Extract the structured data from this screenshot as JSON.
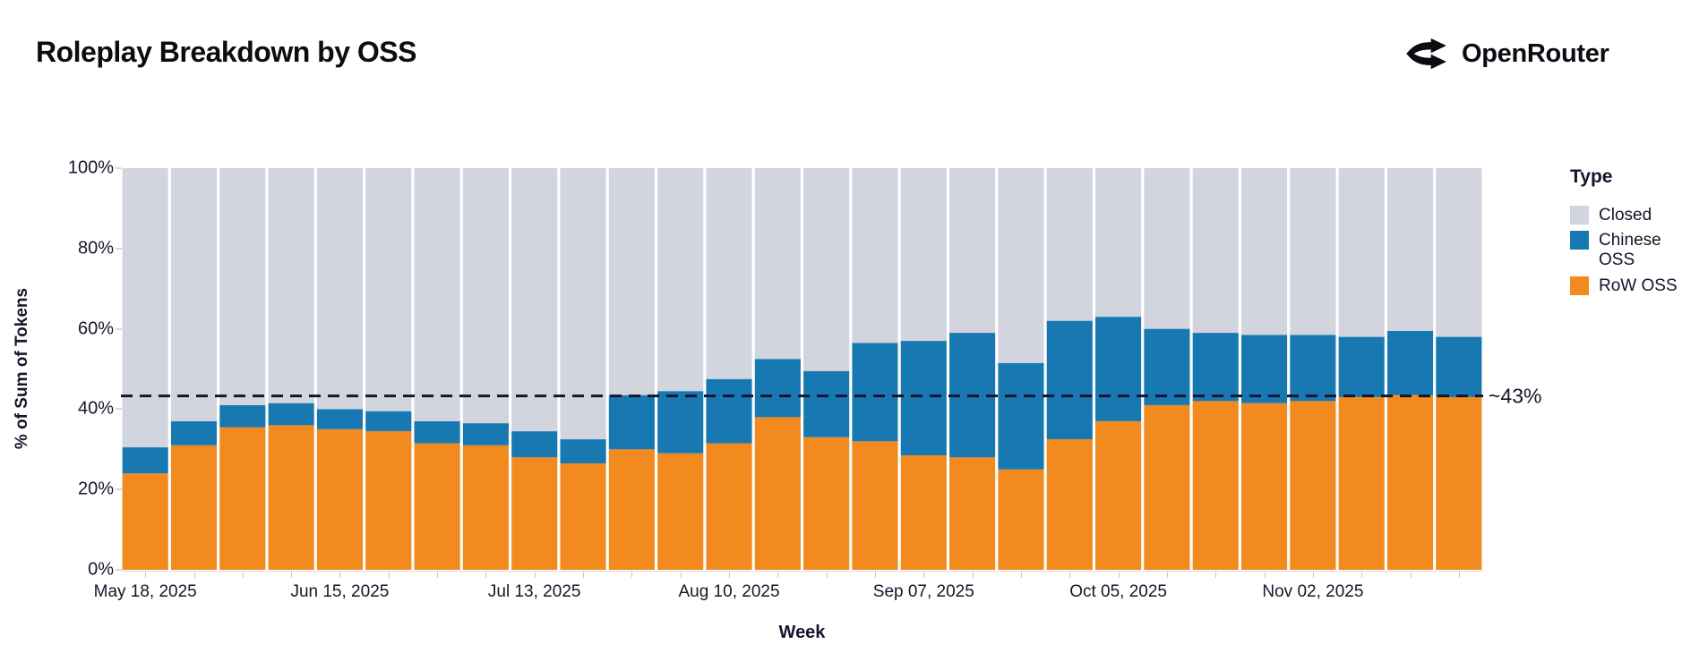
{
  "header": {
    "title": "Roleplay Breakdown by OSS",
    "brand": "OpenRouter",
    "brand_icon": "openrouter-split-arrows-icon"
  },
  "colors": {
    "row_oss": "#F28A1F",
    "chinese_oss": "#1879B2",
    "closed": "#D2D4DE",
    "annotation_line": "#14142b",
    "axis_text": "#16162b"
  },
  "chart_data": {
    "type": "bar",
    "stacked": true,
    "title": "Roleplay Breakdown by OSS",
    "xlabel": "Week",
    "ylabel": "% of Sum of Tokens",
    "ylim": [
      0,
      100
    ],
    "y_ticks": [
      "0%",
      "20%",
      "40%",
      "60%",
      "80%",
      "100%"
    ],
    "x_tick_label_every": 4,
    "x_tick_labels": [
      "May 18, 2025",
      "Jun 15, 2025",
      "Jul 13, 2025",
      "Aug 10, 2025",
      "Sep 07, 2025",
      "Oct 05, 2025",
      "Nov 02, 2025"
    ],
    "categories": [
      "May 18, 2025",
      "May 25, 2025",
      "Jun 01, 2025",
      "Jun 08, 2025",
      "Jun 15, 2025",
      "Jun 22, 2025",
      "Jun 29, 2025",
      "Jul 06, 2025",
      "Jul 13, 2025",
      "Jul 20, 2025",
      "Jul 27, 2025",
      "Aug 03, 2025",
      "Aug 10, 2025",
      "Aug 17, 2025",
      "Aug 24, 2025",
      "Aug 31, 2025",
      "Sep 07, 2025",
      "Sep 14, 2025",
      "Sep 21, 2025",
      "Sep 28, 2025",
      "Oct 05, 2025",
      "Oct 12, 2025",
      "Oct 19, 2025",
      "Oct 26, 2025",
      "Nov 02, 2025",
      "Nov 09, 2025",
      "Nov 16, 2025",
      "Nov 23, 2025"
    ],
    "series": [
      {
        "name": "RoW OSS",
        "color": "#F28A1F",
        "values": [
          24,
          31,
          35.5,
          36,
          35,
          34.5,
          31.5,
          31,
          28,
          26.5,
          30,
          29,
          31.5,
          38,
          33,
          32,
          28.5,
          28,
          25,
          32.5,
          37,
          41,
          42,
          41.5,
          42,
          43,
          43.5,
          43
        ]
      },
      {
        "name": "Chinese OSS",
        "color": "#1879B2",
        "values": [
          6.5,
          6,
          5.5,
          5.5,
          5,
          5,
          5.5,
          5.5,
          6.5,
          6,
          13.5,
          15.5,
          16,
          14.5,
          16.5,
          24.5,
          28.5,
          31,
          26.5,
          29.5,
          26,
          19,
          17,
          17,
          16.5,
          15,
          16,
          15
        ]
      },
      {
        "name": "Closed",
        "color": "#D2D4DE",
        "values": [
          69.5,
          63,
          59,
          58.5,
          60,
          60.5,
          63,
          63.5,
          65.5,
          67.5,
          56.5,
          55.5,
          52.5,
          47.5,
          50.5,
          43.5,
          43,
          41,
          48.5,
          38,
          37,
          40,
          41,
          41.5,
          41.5,
          42,
          40.5,
          42
        ]
      }
    ],
    "annotation": {
      "value": 43.3,
      "label": "~43%"
    },
    "legend": {
      "title": "Type",
      "position": "right",
      "entries": [
        {
          "label": "Closed",
          "color": "#D2D4DE"
        },
        {
          "label": "Chinese OSS",
          "color": "#1879B2"
        },
        {
          "label": "RoW OSS",
          "color": "#F28A1F"
        }
      ]
    }
  }
}
